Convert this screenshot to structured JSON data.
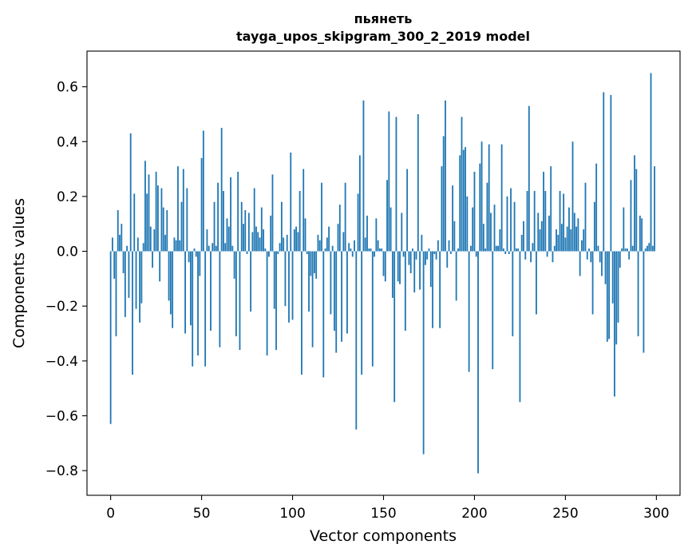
{
  "chart_data": {
    "type": "bar",
    "title": "пьянеть",
    "subtitle": "tayga_upos_skipgram_300_2_2019 model",
    "xlabel": "Vector components",
    "ylabel": "Components values",
    "xlim": [
      -13,
      313
    ],
    "ylim": [
      -0.89,
      0.73
    ],
    "xticks": [
      0,
      50,
      100,
      150,
      200,
      250,
      300
    ],
    "yticks": [
      -0.8,
      -0.6,
      -0.4,
      -0.2,
      0.0,
      0.2,
      0.4,
      0.6
    ],
    "ytick_labels": [
      "−0.8",
      "−0.6",
      "−0.4",
      "−0.2",
      "0.0",
      "0.2",
      "0.4",
      "0.6"
    ],
    "bar_color": "#1f77b4",
    "grid": false,
    "values": [
      -0.63,
      0.05,
      -0.1,
      -0.31,
      0.15,
      0.06,
      0.1,
      -0.08,
      -0.24,
      0.02,
      -0.17,
      0.43,
      -0.45,
      0.21,
      -0.21,
      0.05,
      -0.26,
      -0.19,
      0.03,
      0.33,
      0.21,
      0.28,
      0.09,
      -0.06,
      0.08,
      0.29,
      0.24,
      -0.11,
      0.23,
      0.16,
      0.06,
      0.15,
      -0.18,
      -0.23,
      -0.28,
      0.05,
      0.04,
      0.31,
      0.04,
      0.18,
      0.3,
      -0.3,
      0.23,
      -0.04,
      -0.27,
      -0.42,
      0.01,
      -0.02,
      -0.38,
      -0.09,
      0.34,
      0.44,
      -0.42,
      0.08,
      0.02,
      -0.29,
      0.03,
      0.18,
      0.02,
      0.25,
      -0.35,
      0.45,
      0.22,
      0.03,
      0.12,
      0.09,
      0.27,
      0.02,
      -0.1,
      -0.31,
      0.29,
      -0.36,
      0.18,
      0.1,
      0.15,
      -0.01,
      0.14,
      -0.22,
      0.07,
      0.23,
      0.09,
      0.07,
      0.05,
      0.16,
      0.08,
      0.01,
      -0.38,
      -0.02,
      0.13,
      0.28,
      -0.21,
      -0.36,
      -0.01,
      0.03,
      0.18,
      0.05,
      -0.2,
      0.06,
      -0.26,
      0.36,
      -0.25,
      0.08,
      0.09,
      0.07,
      0.22,
      -0.45,
      0.3,
      0.12,
      -0.01,
      -0.22,
      -0.09,
      -0.35,
      -0.08,
      -0.1,
      0.06,
      0.04,
      0.25,
      -0.46,
      0.01,
      0.05,
      0.09,
      -0.23,
      0.02,
      -0.29,
      -0.37,
      0.1,
      0.17,
      -0.33,
      0.07,
      0.25,
      -0.3,
      0.03,
      0.01,
      -0.02,
      0.04,
      -0.65,
      0.21,
      0.35,
      -0.45,
      0.55,
      0.05,
      0.13,
      0.01,
      0.01,
      -0.42,
      -0.02,
      0.12,
      0.04,
      0.01,
      0.01,
      -0.09,
      -0.11,
      0.26,
      0.51,
      0.16,
      -0.17,
      -0.55,
      0.49,
      -0.11,
      -0.12,
      0.14,
      -0.02,
      -0.29,
      0.3,
      -0.05,
      -0.08,
      0.01,
      -0.15,
      -0.03,
      0.5,
      -0.14,
      0.06,
      -0.74,
      -0.05,
      -0.03,
      0.01,
      -0.13,
      -0.28,
      -0.01,
      -0.03,
      0.04,
      -0.28,
      0.31,
      0.42,
      0.55,
      -0.06,
      0.04,
      -0.01,
      0.24,
      0.11,
      -0.18,
      0.01,
      0.35,
      0.49,
      0.37,
      0.38,
      0.2,
      -0.44,
      0.02,
      0.16,
      0.29,
      -0.02,
      -0.81,
      0.32,
      0.4,
      0.1,
      0.01,
      0.25,
      0.39,
      0.14,
      -0.43,
      0.17,
      0.02,
      0.02,
      0.08,
      0.39,
      0.01,
      -0.01,
      0.2,
      -0.01,
      0.23,
      -0.31,
      0.18,
      0.01,
      0.01,
      -0.55,
      0.06,
      0.11,
      -0.03,
      0.22,
      0.53,
      -0.04,
      0.03,
      0.22,
      -0.23,
      0.14,
      0.08,
      0.11,
      0.29,
      0.22,
      -0.02,
      0.13,
      0.31,
      -0.04,
      0.02,
      0.08,
      0.06,
      0.22,
      0.1,
      0.21,
      0.05,
      0.09,
      0.16,
      0.08,
      0.4,
      0.14,
      0.09,
      0.12,
      -0.09,
      0.04,
      0.08,
      0.25,
      -0.03,
      0.01,
      -0.04,
      -0.23,
      0.18,
      0.32,
      0.02,
      -0.04,
      -0.09,
      0.58,
      -0.12,
      -0.33,
      -0.32,
      0.57,
      -0.19,
      -0.53,
      -0.34,
      -0.26,
      -0.06,
      0.01,
      0.16,
      0.01,
      0.01,
      -0.03,
      0.26,
      0.02,
      0.35,
      0.3,
      -0.31,
      0.13,
      0.12,
      -0.37,
      0.01,
      0.02,
      0.03,
      0.65,
      0.02,
      0.31
    ]
  }
}
